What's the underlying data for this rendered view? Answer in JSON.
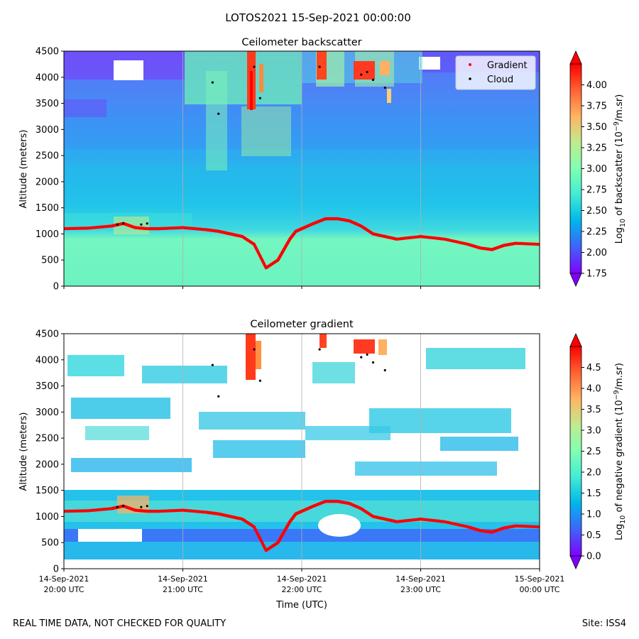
{
  "page": {
    "title": "LOTOS2021 15-Sep-2021 00:00:00",
    "footer_left": "REAL TIME DATA, NOT CHECKED FOR QUALITY",
    "footer_right": "Site: ISS4",
    "xlabel": "Time (UTC)",
    "x_ticks": [
      {
        "line1": "14-Sep-2021",
        "line2": "20:00 UTC"
      },
      {
        "line1": "14-Sep-2021",
        "line2": "21:00 UTC"
      },
      {
        "line1": "14-Sep-2021",
        "line2": "22:00 UTC"
      },
      {
        "line1": "14-Sep-2021",
        "line2": "23:00 UTC"
      },
      {
        "line1": "15-Sep-2021",
        "line2": "00:00 UTC"
      }
    ],
    "legend": {
      "gradient": "Gradient",
      "cloud": "Cloud"
    }
  },
  "colors": {
    "gradient_marker": "#ff0000",
    "cloud_marker": "#000000",
    "colormap": [
      "#8000ff",
      "#4062fa",
      "#00b5eb",
      "#40ecd4",
      "#80ffb4",
      "#c0eb8d",
      "#ffb462",
      "#ff6232",
      "#ff0000"
    ]
  },
  "chart_data": [
    {
      "type": "heatmap",
      "title": "Ceilometer backscatter",
      "ylabel": "Altitude (meters)",
      "xlabel": "",
      "x_range_hours_utc": [
        20,
        24
      ],
      "ylim": [
        0,
        4500
      ],
      "yticks": [
        0,
        500,
        1000,
        1500,
        2000,
        2500,
        3000,
        3500,
        4000,
        4500
      ],
      "colorbar": {
        "label": "Log",
        "label_sub": "10",
        "label_rest": " of backscatter (10",
        "label_sup": "−9",
        "label_end": "/m.sr)",
        "range": [
          1.75,
          4.25
        ],
        "ticks": [
          "1.75",
          "2.00",
          "2.25",
          "2.50",
          "2.75",
          "3.00",
          "3.25",
          "3.50",
          "3.75",
          "4.00"
        ]
      },
      "series": [
        {
          "name": "Gradient",
          "kind": "scatter",
          "x": [
            20.0,
            20.2,
            20.4,
            20.5,
            20.6,
            20.7,
            20.8,
            21.0,
            21.2,
            21.3,
            21.4,
            21.5,
            21.6,
            21.7,
            21.8,
            21.85,
            21.9,
            21.95,
            22.0,
            22.1,
            22.2,
            22.3,
            22.4,
            22.5,
            22.6,
            22.7,
            22.8,
            23.0,
            23.2,
            23.4,
            23.5,
            23.6,
            23.7,
            23.8,
            24.0
          ],
          "values": [
            1100,
            1110,
            1150,
            1200,
            1120,
            1100,
            1100,
            1120,
            1080,
            1050,
            1000,
            950,
            800,
            350,
            500,
            700,
            900,
            1050,
            1100,
            1200,
            1290,
            1290,
            1250,
            1150,
            1000,
            950,
            900,
            950,
            900,
            800,
            730,
            700,
            780,
            820,
            800
          ]
        },
        {
          "name": "Cloud",
          "kind": "scatter",
          "x": [
            20.45,
            20.5,
            20.65,
            20.7,
            21.25,
            21.3,
            21.6,
            21.65,
            22.15,
            22.5,
            22.55,
            22.6,
            22.7
          ],
          "values": [
            1180,
            1200,
            1180,
            1200,
            3900,
            3300,
            4200,
            3600,
            4200,
            4050,
            4100,
            3950,
            3800
          ]
        }
      ]
    },
    {
      "type": "heatmap",
      "title": "Ceilometer gradient",
      "ylabel": "Altitude (meters)",
      "xlabel": "Time (UTC)",
      "x_range_hours_utc": [
        20,
        24
      ],
      "ylim": [
        0,
        4500
      ],
      "yticks": [
        0,
        500,
        1000,
        1500,
        2000,
        2500,
        3000,
        3500,
        4000,
        4500
      ],
      "colorbar": {
        "label": "Log",
        "label_sub": "10",
        "label_rest": " of negative gradient (10",
        "label_sup": "−9",
        "label_end": "/m.sr)",
        "range": [
          0.0,
          5.0
        ],
        "ticks": [
          "0.0",
          "0.5",
          "1.0",
          "1.5",
          "2.0",
          "2.5",
          "3.0",
          "3.5",
          "4.0",
          "4.5"
        ]
      },
      "series": [
        {
          "name": "Gradient",
          "kind": "scatter",
          "x": [
            20.0,
            20.2,
            20.4,
            20.5,
            20.6,
            20.7,
            20.8,
            21.0,
            21.2,
            21.3,
            21.4,
            21.5,
            21.6,
            21.7,
            21.8,
            21.85,
            21.9,
            21.95,
            22.0,
            22.1,
            22.2,
            22.3,
            22.4,
            22.5,
            22.6,
            22.7,
            22.8,
            23.0,
            23.2,
            23.4,
            23.5,
            23.6,
            23.7,
            23.8,
            24.0
          ],
          "values": [
            1100,
            1110,
            1150,
            1200,
            1120,
            1100,
            1100,
            1120,
            1080,
            1050,
            1000,
            950,
            800,
            350,
            500,
            700,
            900,
            1050,
            1100,
            1200,
            1290,
            1290,
            1250,
            1150,
            1000,
            950,
            900,
            950,
            900,
            800,
            730,
            700,
            780,
            820,
            800
          ]
        },
        {
          "name": "Cloud",
          "kind": "scatter",
          "x": [
            20.45,
            20.5,
            20.65,
            20.7,
            21.25,
            21.3,
            21.6,
            21.65,
            22.15,
            22.5,
            22.55,
            22.6,
            22.7
          ],
          "values": [
            1180,
            1200,
            1180,
            1200,
            3900,
            3300,
            4200,
            3600,
            4200,
            4050,
            4100,
            3950,
            3800
          ]
        }
      ]
    }
  ]
}
